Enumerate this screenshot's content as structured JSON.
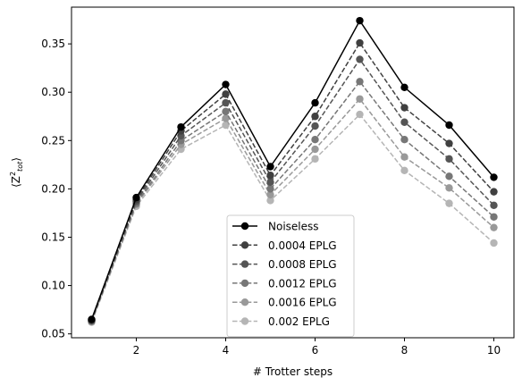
{
  "chart_data": {
    "type": "line",
    "xlabel": "# Trotter steps",
    "ylabel": "⟨Z²tot⟩",
    "xlim": [
      0.55,
      10.45
    ],
    "ylim": [
      0.046,
      0.388
    ],
    "xticks": [
      2,
      4,
      6,
      8,
      10
    ],
    "yticks": [
      0.05,
      0.1,
      0.15,
      0.2,
      0.25,
      0.3,
      0.35
    ],
    "ytick_labels": [
      "0.05",
      "0.10",
      "0.15",
      "0.20",
      "0.25",
      "0.30",
      "0.35"
    ],
    "grid": false,
    "legend_position": "lower-center",
    "x": [
      1,
      2,
      3,
      4,
      5,
      6,
      7,
      8,
      9,
      10
    ],
    "series": [
      {
        "name": "Noiseless",
        "color": "#000000",
        "dashed": false,
        "values": [
          0.065,
          0.191,
          0.264,
          0.308,
          0.223,
          0.289,
          0.374,
          0.305,
          0.266,
          0.212
        ]
      },
      {
        "name": "0.0004 EPLG",
        "color": "#404040",
        "dashed": true,
        "values": [
          0.064,
          0.189,
          0.26,
          0.298,
          0.214,
          0.275,
          0.351,
          0.284,
          0.247,
          0.197
        ]
      },
      {
        "name": "0.0008 EPLG",
        "color": "#555555",
        "dashed": true,
        "values": [
          0.064,
          0.187,
          0.255,
          0.289,
          0.207,
          0.265,
          0.334,
          0.269,
          0.231,
          0.183
        ]
      },
      {
        "name": "0.0012 EPLG",
        "color": "#777777",
        "dashed": true,
        "values": [
          0.063,
          0.185,
          0.25,
          0.28,
          0.2,
          0.251,
          0.311,
          0.251,
          0.213,
          0.171
        ]
      },
      {
        "name": "0.0016 EPLG",
        "color": "#999999",
        "dashed": true,
        "values": [
          0.063,
          0.184,
          0.246,
          0.273,
          0.194,
          0.241,
          0.293,
          0.233,
          0.201,
          0.16
        ]
      },
      {
        "name": "0.002 EPLG",
        "color": "#b5b5b5",
        "dashed": true,
        "values": [
          0.062,
          0.182,
          0.241,
          0.266,
          0.188,
          0.231,
          0.277,
          0.219,
          0.185,
          0.144
        ]
      }
    ]
  }
}
